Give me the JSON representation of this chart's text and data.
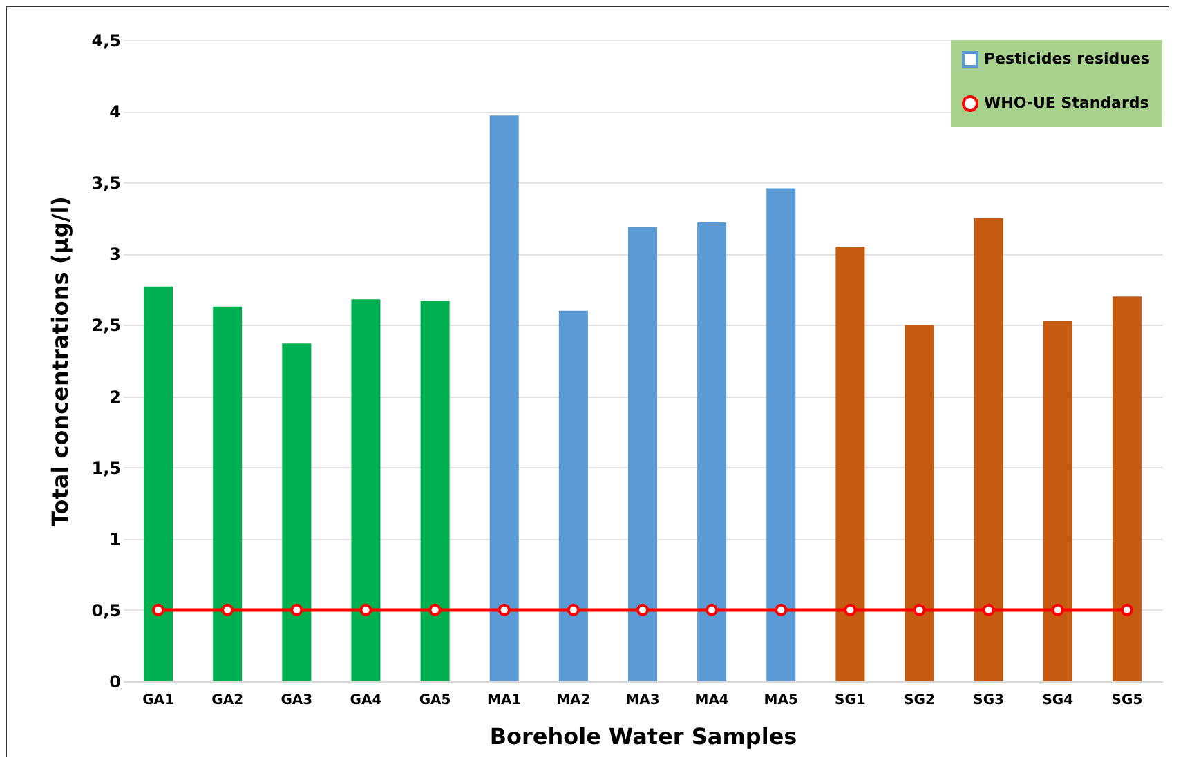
{
  "chart_data": {
    "type": "bar",
    "xlabel": "Borehole Water Samples",
    "ylabel": "Total concentrations (µg/l)",
    "categories": [
      "GA1",
      "GA2",
      "GA3",
      "GA4",
      "GA5",
      "MA1",
      "MA2",
      "MA3",
      "MA4",
      "MA5",
      "SG1",
      "SG2",
      "SG3",
      "SG4",
      "SG5"
    ],
    "series": [
      {
        "name": "Pesticides residues",
        "color": "#5b9bd5",
        "colors": [
          "#00b050",
          "#00b050",
          "#00b050",
          "#00b050",
          "#00b050",
          "#5b9bd5",
          "#5b9bd5",
          "#5b9bd5",
          "#5b9bd5",
          "#5b9bd5",
          "#c55a11",
          "#c55a11",
          "#c55a11",
          "#c55a11",
          "#c55a11"
        ],
        "values": [
          2.77,
          2.63,
          2.37,
          2.68,
          2.67,
          3.97,
          2.6,
          3.19,
          3.22,
          3.46,
          3.05,
          2.5,
          3.25,
          2.53,
          2.7
        ]
      },
      {
        "name": "WHO-UE Standards",
        "type": "line",
        "color": "#ff0000",
        "marker": "circle",
        "values": [
          0.5,
          0.5,
          0.5,
          0.5,
          0.5,
          0.5,
          0.5,
          0.5,
          0.5,
          0.5,
          0.5,
          0.5,
          0.5,
          0.5,
          0.5
        ]
      }
    ],
    "ylim": [
      0,
      4.5
    ],
    "yticks": [
      0,
      {
        "value": 0.5,
        "label": "0,5"
      },
      1,
      {
        "value": 1.5,
        "label": "1,5"
      },
      2,
      {
        "value": 2.5,
        "label": "2,5"
      },
      3,
      {
        "value": 3.5,
        "label": "3,5"
      },
      4,
      {
        "value": 4.5,
        "label": "4,5"
      }
    ],
    "grid": "y",
    "legend": "top right"
  }
}
